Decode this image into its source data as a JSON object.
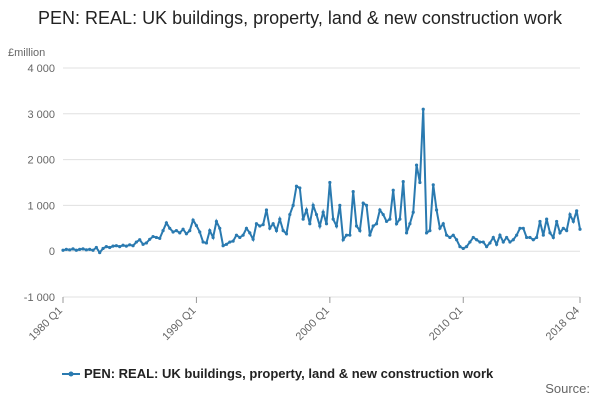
{
  "chart_data": {
    "type": "line",
    "title": "PEN: REAL: UK buildings, property, land & new construction work",
    "y_label": "£million",
    "source": "Source:",
    "categories": [
      "1980 Q1",
      null,
      null,
      null,
      null,
      null,
      null,
      null,
      null,
      null,
      null,
      null,
      null,
      null,
      null,
      null,
      null,
      null,
      null,
      null,
      null,
      null,
      null,
      null,
      null,
      null,
      null,
      null,
      null,
      null,
      null,
      null,
      null,
      null,
      null,
      null,
      null,
      null,
      null,
      null,
      "1990 Q1",
      null,
      null,
      null,
      null,
      null,
      null,
      null,
      null,
      null,
      null,
      null,
      null,
      null,
      null,
      null,
      null,
      null,
      null,
      null,
      null,
      null,
      null,
      null,
      null,
      null,
      null,
      null,
      null,
      null,
      null,
      null,
      null,
      null,
      null,
      null,
      null,
      null,
      null,
      null,
      "2000 Q1",
      null,
      null,
      null,
      null,
      null,
      null,
      null,
      null,
      null,
      null,
      null,
      null,
      null,
      null,
      null,
      null,
      null,
      null,
      null,
      null,
      null,
      null,
      null,
      null,
      null,
      null,
      null,
      null,
      null,
      null,
      null,
      null,
      null,
      null,
      null,
      null,
      null,
      null,
      null,
      "2010 Q1",
      null,
      null,
      null,
      null,
      null,
      null,
      null,
      null,
      null,
      null,
      null,
      null,
      null,
      null,
      null,
      null,
      null,
      null,
      null,
      null,
      null,
      null,
      null,
      null,
      null,
      null,
      null,
      null,
      null,
      null,
      null,
      null,
      null,
      null,
      "2018 Q4"
    ],
    "series": [
      {
        "name": "PEN: REAL: UK buildings, property, land & new construction work",
        "color": "#2a7ab0",
        "values": [
          20,
          40,
          30,
          50,
          20,
          40,
          50,
          30,
          40,
          20,
          80,
          -30,
          60,
          100,
          80,
          110,
          120,
          100,
          130,
          110,
          140,
          120,
          200,
          250,
          150,
          180,
          260,
          320,
          300,
          280,
          450,
          620,
          500,
          420,
          450,
          400,
          480,
          380,
          450,
          680,
          560,
          420,
          200,
          180,
          450,
          300,
          650,
          500,
          120,
          150,
          200,
          220,
          350,
          300,
          350,
          500,
          400,
          260,
          600,
          550,
          580,
          900,
          500,
          600,
          450,
          700,
          450,
          380,
          800,
          1000,
          1420,
          1380,
          700,
          900,
          600,
          1000,
          800,
          550,
          850,
          600,
          1500,
          700,
          550,
          1000,
          250,
          350,
          350,
          1300,
          550,
          450,
          1050,
          1000,
          350,
          550,
          600,
          900,
          800,
          650,
          700,
          1330,
          600,
          700,
          1520,
          400,
          600,
          850,
          1880,
          1500,
          3100,
          400,
          450,
          1450,
          900,
          500,
          600,
          350,
          300,
          350,
          250,
          100,
          60,
          100,
          200,
          300,
          250,
          200,
          200,
          100,
          180,
          300,
          150,
          350,
          200,
          300,
          200,
          250,
          350,
          500,
          500,
          300,
          300,
          250,
          300,
          650,
          350,
          700,
          400,
          300,
          650,
          400,
          500,
          450,
          800,
          650,
          880,
          480
        ]
      }
    ],
    "ylim": [
      -1000,
      4000
    ],
    "yticks": [
      {
        "value": -1000,
        "label": "-1 000"
      },
      0,
      {
        "value": 1000,
        "label": "1 000"
      },
      {
        "value": 2000,
        "label": "2 000"
      },
      {
        "value": 3000,
        "label": "3 000"
      },
      {
        "value": 4000,
        "label": "4 000"
      }
    ],
    "grid": true
  }
}
